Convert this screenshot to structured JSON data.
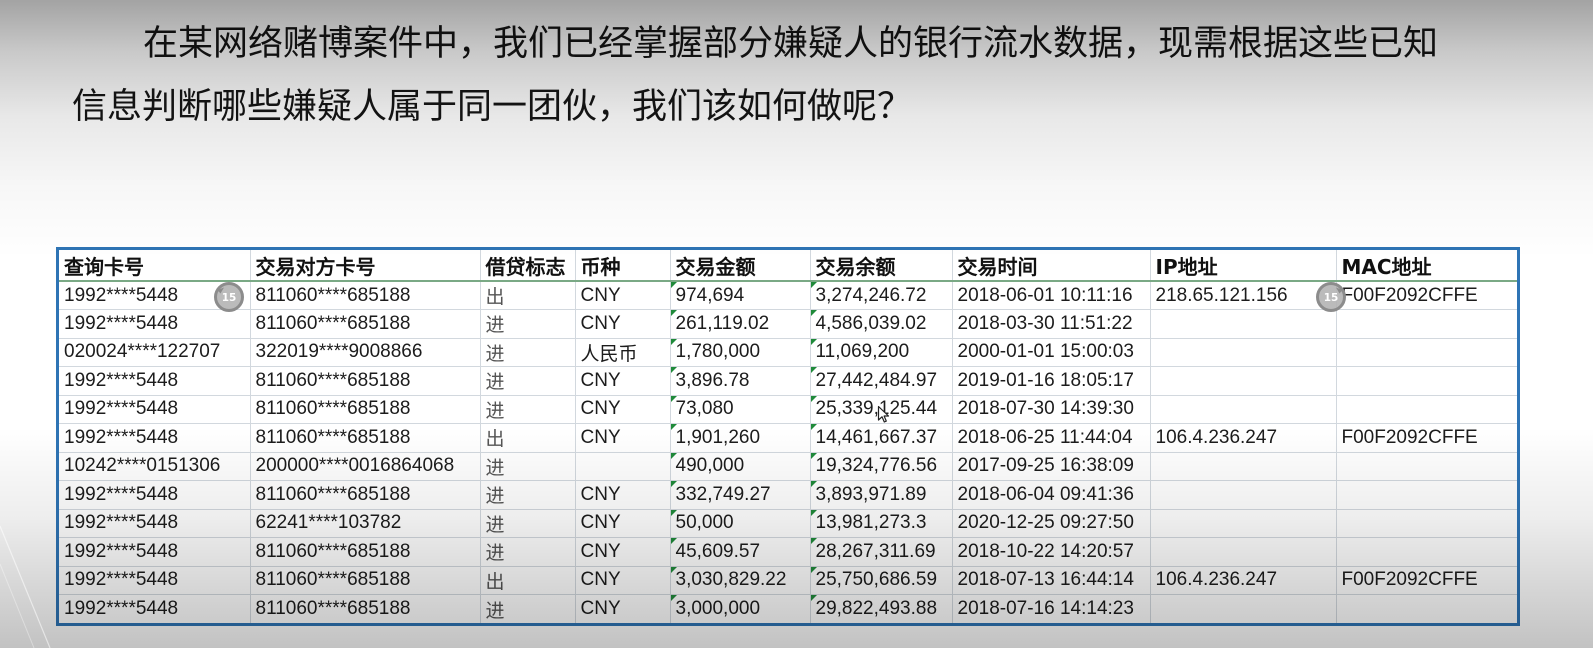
{
  "slide": {
    "question_line1": "在某网络赌博案件中，我们已经掌握部分嫌疑人的银行流水数据，现需根据这些已知",
    "question_line2": "信息判断哪些嫌疑人属于同一团伙，我们该如何做呢？"
  },
  "table": {
    "columns": [
      "查询卡号",
      "交易对方卡号",
      "借贷标志",
      "币种",
      "交易金额",
      "交易余额",
      "交易时间",
      "IP地址",
      "MAC地址"
    ],
    "rows": [
      [
        "1992****5448",
        "811060****685188",
        "出",
        "CNY",
        "974,694",
        "3,274,246.72",
        "2018-06-01 10:11:16",
        "218.65.121.156",
        "F00F2092CFFE"
      ],
      [
        "1992****5448",
        "811060****685188",
        "进",
        "CNY",
        "261,119.02",
        "4,586,039.02",
        "2018-03-30 11:51:22",
        "",
        ""
      ],
      [
        "020024****122707",
        "322019****9008866",
        "进",
        "人民币",
        "1,780,000",
        "11,069,200",
        "2000-01-01 15:00:03",
        "",
        ""
      ],
      [
        "1992****5448",
        "811060****685188",
        "进",
        "CNY",
        "3,896.78",
        "27,442,484.97",
        "2019-01-16 18:05:17",
        "",
        ""
      ],
      [
        "1992****5448",
        "811060****685188",
        "进",
        "CNY",
        "73,080",
        "25,339,125.44",
        "2018-07-30 14:39:30",
        "",
        ""
      ],
      [
        "1992****5448",
        "811060****685188",
        "出",
        "CNY",
        "1,901,260",
        "14,461,667.37",
        "2018-06-25 11:44:04",
        "106.4.236.247",
        "F00F2092CFFE"
      ],
      [
        "10242****0151306",
        "200000****0016864068",
        "进",
        "",
        "490,000",
        "19,324,776.56",
        "2017-09-25 16:38:09",
        "",
        ""
      ],
      [
        "1992****5448",
        "811060****685188",
        "进",
        "CNY",
        "332,749.27",
        "3,893,971.89",
        "2018-06-04 09:41:36",
        "",
        ""
      ],
      [
        "1992****5448",
        "62241****103782",
        "进",
        "CNY",
        "50,000",
        "13,981,273.3",
        "2020-12-25 09:27:50",
        "",
        ""
      ],
      [
        "1992****5448",
        "811060****685188",
        "进",
        "CNY",
        "45,609.57",
        "28,267,311.69",
        "2018-10-22 14:20:57",
        "",
        ""
      ],
      [
        "1992****5448",
        "811060****685188",
        "出",
        "CNY",
        "3,030,829.22",
        "25,750,686.59",
        "2018-07-13 16:44:14",
        "106.4.236.247",
        "F00F2092CFFE"
      ],
      [
        "1992****5448",
        "811060****685188",
        "进",
        "CNY",
        "3,000,000",
        "29,822,493.88",
        "2018-07-16 14:14:23",
        "",
        ""
      ]
    ]
  },
  "player": {
    "rewind_label": "15",
    "forward_label": "15"
  },
  "icons": {
    "rewind": "rewind-15-icon",
    "forward": "forward-15-icon",
    "cursor": "mouse-cursor-icon"
  },
  "colors": {
    "table_border": "#2e74b5",
    "grid_line": "#d2d8de",
    "header_rule": "#7aa985",
    "number_stored_as_text_marker": "#1f8a3a",
    "text": "#151515"
  }
}
